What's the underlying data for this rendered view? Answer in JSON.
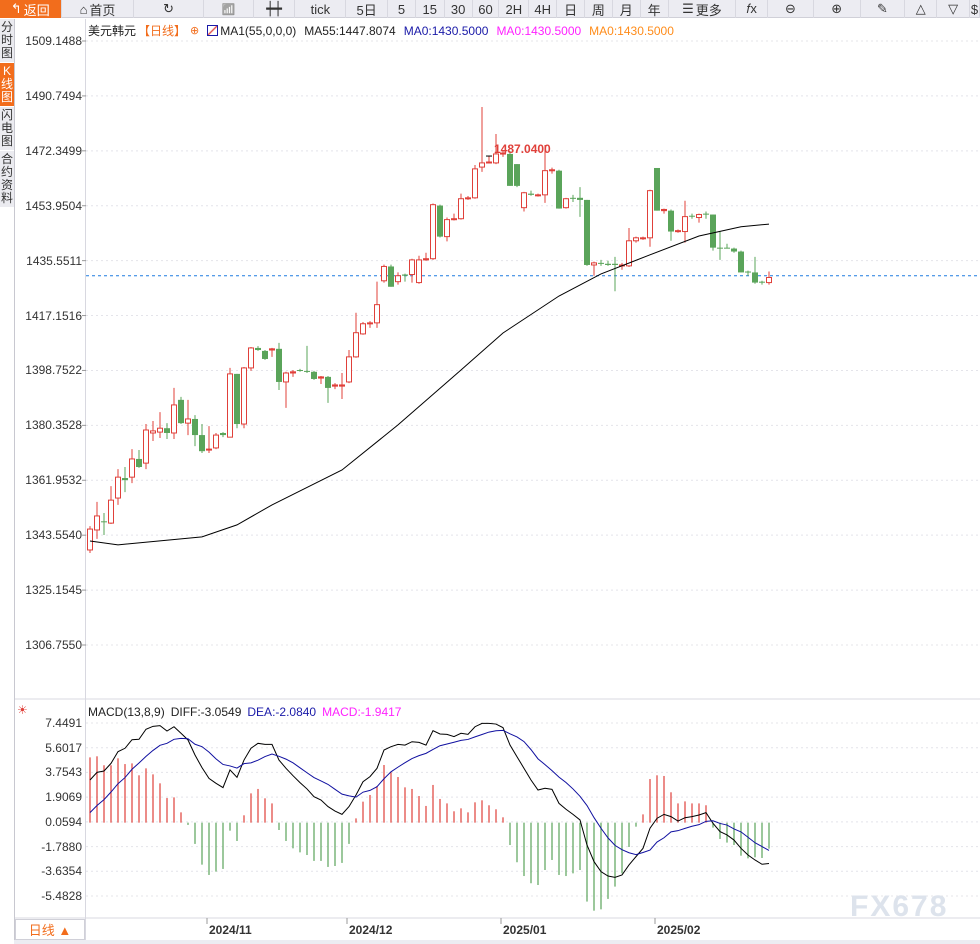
{
  "toolbar": {
    "items": [
      {
        "id": "back",
        "label": "返回",
        "icon": "back-arrow-icon",
        "w": 62
      },
      {
        "id": "home",
        "label": "首页",
        "icon": "home-icon",
        "w": 73
      },
      {
        "id": "refresh",
        "label": "",
        "icon": "refresh-icon",
        "w": 70
      },
      {
        "id": "indicators",
        "label": "",
        "icon": "bar-chart-icon",
        "w": 50
      },
      {
        "id": "candle-style",
        "label": "",
        "icon": "candlestick-icon",
        "w": 42
      },
      {
        "id": "tick",
        "label": "tick",
        "w": 51
      },
      {
        "id": "5d",
        "label": "5日",
        "w": 42
      },
      {
        "id": "5",
        "label": "5",
        "w": 28
      },
      {
        "id": "15",
        "label": "15",
        "w": 29
      },
      {
        "id": "30",
        "label": "30",
        "w": 28
      },
      {
        "id": "60",
        "label": "60",
        "w": 27
      },
      {
        "id": "2h",
        "label": "2H",
        "w": 30
      },
      {
        "id": "4h",
        "label": "4H",
        "w": 28
      },
      {
        "id": "day",
        "label": "日",
        "w": 28
      },
      {
        "id": "week",
        "label": "周",
        "w": 28
      },
      {
        "id": "month",
        "label": "月",
        "w": 28
      },
      {
        "id": "year",
        "label": "年",
        "w": 28
      },
      {
        "id": "more",
        "label": "更多",
        "icon": "menu-icon",
        "w": 68
      },
      {
        "id": "fx",
        "label": "",
        "icon": "function-icon",
        "w": 32
      },
      {
        "id": "zoom-out",
        "label": "",
        "icon": "zoom-out-icon",
        "w": 46
      },
      {
        "id": "zoom-in",
        "label": "",
        "icon": "zoom-in-icon",
        "w": 47
      },
      {
        "id": "draw",
        "label": "",
        "icon": "pencil-icon",
        "w": 45
      },
      {
        "id": "up",
        "label": "",
        "icon": "triangle-up-icon",
        "w": 32
      },
      {
        "id": "down",
        "label": "",
        "icon": "triangle-down-icon",
        "w": 33
      },
      {
        "id": "dollar",
        "label": "$",
        "w": 10
      }
    ]
  },
  "left_tabs": [
    {
      "label": "分时图",
      "active": false
    },
    {
      "label": "K线图",
      "active": true
    },
    {
      "label": "闪电图",
      "active": false
    },
    {
      "label": "合约资料",
      "active": false
    }
  ],
  "legend": {
    "symbol": "美元韩元",
    "period": "【日线】",
    "indicator": "MA1(55,0,0,0)",
    "ma55": "MA55:1447.8074",
    "ma0_a": "MA0:1430.5000",
    "ma0_b": "MA0:1430.5000",
    "ma0_c": "MA0:1430.5000"
  },
  "macd_legend": {
    "name": "MACD(13,8,9)",
    "diff": "DIFF:-3.0549",
    "dea": "DEA:-2.0840",
    "macd": "MACD:-1.9417"
  },
  "period_selector": "日线 ▲",
  "watermark": "FX678",
  "colors": {
    "up": "#e0403a",
    "down": "#5aa45a",
    "ma55": "#000000",
    "diff": "#000000",
    "dea": "#1010a0",
    "dashed": "#1e7be0",
    "accent": "#f26d1c",
    "ma0_a": "#1a1aa8",
    "ma0_b": "#ff22ff",
    "ma0_c": "#ff8c1a"
  },
  "chart_data": [
    {
      "type": "candlestick",
      "title": "美元韩元 日线",
      "y_ticks": [
        "1509.1488",
        "1490.7494",
        "1472.3499",
        "1453.9504",
        "1435.5511",
        "1417.1516",
        "1398.7522",
        "1380.3528",
        "1361.9532",
        "1343.5540",
        "1325.1545",
        "1306.7550"
      ],
      "ylim": [
        1306.755,
        1509.1488
      ],
      "x_ticks": [
        {
          "label": "2024/11",
          "index": 17
        },
        {
          "label": "2024/12",
          "index": 37
        },
        {
          "label": "2025/01",
          "index": 59
        },
        {
          "label": "2025/02",
          "index": 81
        }
      ],
      "max_label": "1487.0400",
      "max_index": 57,
      "last_price_line": 1430.5,
      "candles_ohlc": [
        [
          1338.6,
          1346.6,
          1337.6,
          1345.6
        ],
        [
          1345.3,
          1354.7,
          1342.3,
          1350.0
        ],
        [
          1348.2,
          1351.0,
          1343.6,
          1348.0
        ],
        [
          1347.6,
          1360.0,
          1347.3,
          1355.3
        ],
        [
          1356.0,
          1365.7,
          1353.7,
          1363.0
        ],
        [
          1362.7,
          1366.4,
          1358.0,
          1362.0
        ],
        [
          1363.0,
          1372.4,
          1361.0,
          1369.1
        ],
        [
          1369.1,
          1372.1,
          1366.1,
          1366.4
        ],
        [
          1367.7,
          1380.8,
          1365.7,
          1378.8
        ],
        [
          1377.8,
          1381.8,
          1375.1,
          1378.5
        ],
        [
          1378.1,
          1384.8,
          1376.1,
          1379.4
        ],
        [
          1379.4,
          1381.1,
          1375.8,
          1377.8
        ],
        [
          1377.8,
          1392.9,
          1375.8,
          1387.2
        ],
        [
          1388.9,
          1389.9,
          1380.8,
          1381.1
        ],
        [
          1381.1,
          1388.9,
          1377.1,
          1382.5
        ],
        [
          1382.5,
          1383.8,
          1373.4,
          1377.1
        ],
        [
          1377.1,
          1380.8,
          1371.1,
          1371.7
        ],
        [
          1372.1,
          1380.1,
          1371.1,
          1372.4
        ],
        [
          1372.8,
          1377.8,
          1372.4,
          1377.1
        ],
        [
          1377.8,
          1378.1,
          1376.4,
          1377.1
        ],
        [
          1376.4,
          1399.6,
          1376.4,
          1397.6
        ],
        [
          1397.6,
          1397.6,
          1379.4,
          1380.8
        ],
        [
          1380.8,
          1399.9,
          1379.4,
          1399.6
        ],
        [
          1399.6,
          1406.6,
          1398.6,
          1406.3
        ],
        [
          1406.3,
          1406.9,
          1405.3,
          1405.6
        ],
        [
          1405.3,
          1405.6,
          1402.3,
          1402.6
        ],
        [
          1405.6,
          1406.3,
          1403.3,
          1406.0
        ],
        [
          1406.0,
          1408.0,
          1392.2,
          1394.9
        ],
        [
          1394.9,
          1398.3,
          1386.2,
          1397.9
        ],
        [
          1397.9,
          1398.9,
          1396.6,
          1398.3
        ],
        [
          1398.9,
          1399.3,
          1398.3,
          1398.6
        ],
        [
          1398.6,
          1407.0,
          1397.9,
          1398.3
        ],
        [
          1398.3,
          1398.6,
          1395.6,
          1395.9
        ],
        [
          1396.2,
          1396.9,
          1394.2,
          1396.6
        ],
        [
          1396.6,
          1396.9,
          1387.9,
          1392.9
        ],
        [
          1393.5,
          1394.5,
          1392.5,
          1393.9
        ],
        [
          1393.5,
          1397.9,
          1389.2,
          1393.9
        ],
        [
          1394.9,
          1405.6,
          1394.5,
          1403.3
        ],
        [
          1403.3,
          1418.1,
          1403.0,
          1411.4
        ],
        [
          1411.0,
          1415.0,
          1410.7,
          1414.4
        ],
        [
          1414.4,
          1415.3,
          1413.0,
          1414.7
        ],
        [
          1414.7,
          1428.5,
          1413.0,
          1420.8
        ],
        [
          1428.8,
          1434.2,
          1428.2,
          1433.6
        ],
        [
          1433.6,
          1434.2,
          1426.8,
          1426.8
        ],
        [
          1428.5,
          1431.6,
          1427.5,
          1430.5
        ],
        [
          1430.9,
          1431.2,
          1428.5,
          1430.5
        ],
        [
          1430.9,
          1436.2,
          1428.2,
          1435.8
        ],
        [
          1428.2,
          1437.2,
          1427.8,
          1435.8
        ],
        [
          1435.8,
          1438.2,
          1435.5,
          1436.2
        ],
        [
          1436.2,
          1454.7,
          1435.8,
          1454.3
        ],
        [
          1454.0,
          1454.3,
          1443.3,
          1443.6
        ],
        [
          1443.6,
          1450.0,
          1442.0,
          1449.3
        ],
        [
          1449.3,
          1451.3,
          1449.0,
          1449.6
        ],
        [
          1449.6,
          1458.0,
          1449.3,
          1456.3
        ],
        [
          1456.3,
          1457.2,
          1455.9,
          1456.6
        ],
        [
          1456.6,
          1467.6,
          1456.3,
          1466.3
        ],
        [
          1466.9,
          1487.04,
          1465.3,
          1468.3
        ],
        [
          1468.3,
          1470.6,
          1468.3,
          1468.6
        ],
        [
          1468.3,
          1478.0,
          1467.9,
          1471.3
        ],
        [
          1471.3,
          1472.3,
          1470.3,
          1471.6
        ],
        [
          1471.3,
          1472.3,
          1460.6,
          1460.6
        ],
        [
          1467.9,
          1467.9,
          1460.2,
          1460.6
        ],
        [
          1453.3,
          1458.6,
          1452.0,
          1458.3
        ],
        [
          1458.0,
          1459.0,
          1457.3,
          1457.6
        ],
        [
          1457.3,
          1458.0,
          1457.0,
          1457.6
        ],
        [
          1457.6,
          1474.3,
          1454.9,
          1465.7
        ],
        [
          1465.7,
          1466.7,
          1464.7,
          1466.0
        ],
        [
          1465.7,
          1466.0,
          1453.0,
          1453.0
        ],
        [
          1453.3,
          1456.6,
          1453.0,
          1456.3
        ],
        [
          1456.6,
          1457.6,
          1455.2,
          1456.3
        ],
        [
          1456.6,
          1460.2,
          1450.2,
          1455.9
        ],
        [
          1455.9,
          1455.9,
          1433.8,
          1434.1
        ],
        [
          1434.1,
          1435.2,
          1430.5,
          1434.8
        ],
        [
          1434.8,
          1435.8,
          1433.8,
          1434.5
        ],
        [
          1434.5,
          1435.5,
          1433.8,
          1434.1
        ],
        [
          1434.5,
          1436.8,
          1425.3,
          1434.1
        ],
        [
          1433.8,
          1434.8,
          1432.5,
          1434.1
        ],
        [
          1433.8,
          1446.5,
          1433.4,
          1442.2
        ],
        [
          1442.2,
          1443.6,
          1441.6,
          1443.2
        ],
        [
          1442.9,
          1443.6,
          1442.5,
          1443.2
        ],
        [
          1443.2,
          1459.3,
          1440.2,
          1459.0
        ],
        [
          1466.6,
          1466.6,
          1452.3,
          1452.3
        ],
        [
          1452.3,
          1453.0,
          1451.3,
          1452.7
        ],
        [
          1452.3,
          1452.7,
          1442.2,
          1445.3
        ],
        [
          1445.3,
          1446.0,
          1444.9,
          1445.6
        ],
        [
          1445.3,
          1455.6,
          1441.6,
          1450.3
        ],
        [
          1450.6,
          1451.3,
          1449.6,
          1450.3
        ],
        [
          1450.0,
          1451.3,
          1448.3,
          1451.0
        ],
        [
          1451.3,
          1452.0,
          1449.6,
          1451.0
        ],
        [
          1451.0,
          1451.0,
          1438.9,
          1439.9
        ],
        [
          1439.9,
          1445.3,
          1435.8,
          1439.6
        ],
        [
          1439.9,
          1441.2,
          1439.6,
          1439.6
        ],
        [
          1439.6,
          1439.9,
          1438.2,
          1438.6
        ],
        [
          1438.6,
          1438.9,
          1431.6,
          1431.6
        ],
        [
          1431.9,
          1432.2,
          1430.5,
          1431.6
        ],
        [
          1431.6,
          1436.8,
          1427.8,
          1428.2
        ],
        [
          1428.5,
          1428.8,
          1427.5,
          1428.2
        ],
        [
          1428.2,
          1431.9,
          1427.5,
          1429.9
        ]
      ],
      "ma55": [
        [
          0,
          1341.6
        ],
        [
          4,
          1340.3
        ],
        [
          16,
          1343.0
        ],
        [
          21,
          1347.0
        ],
        [
          26,
          1353.7
        ],
        [
          36,
          1365.4
        ],
        [
          44,
          1380.5
        ],
        [
          53,
          1398.9
        ],
        [
          59,
          1411.3
        ],
        [
          67,
          1423.7
        ],
        [
          73,
          1431.1
        ],
        [
          80,
          1437.5
        ],
        [
          87,
          1443.8
        ],
        [
          93,
          1446.9
        ],
        [
          97,
          1447.8
        ]
      ]
    },
    {
      "type": "macd",
      "y_ticks": [
        "7.4491",
        "5.6017",
        "3.7543",
        "1.9069",
        "0.0594",
        "-1.7880",
        "-3.6354",
        "-5.4828"
      ],
      "ylim": [
        -5.4828,
        7.4491
      ],
      "macd": [
        4.88,
        4.96,
        4.29,
        4.29,
        4.81,
        4.38,
        4.43,
        3.54,
        4.06,
        3.61,
        2.94,
        1.84,
        1.89,
        0.77,
        -0.17,
        -1.59,
        -3.14,
        -3.91,
        -3.66,
        -3.46,
        -0.6,
        -1.37,
        0.55,
        2.19,
        2.52,
        1.82,
        1.44,
        -0.55,
        -1.37,
        -1.92,
        -2.22,
        -2.42,
        -2.86,
        -2.86,
        -3.31,
        -3.24,
        -3.01,
        -1.59,
        0.32,
        1.57,
        2.07,
        2.74,
        4.31,
        3.76,
        3.41,
        2.64,
        2.52,
        1.99,
        1.25,
        2.82,
        1.77,
        1.44,
        0.85,
        1.07,
        0.77,
        1.52,
        1.67,
        1.3,
        1.0,
        0.4,
        -1.67,
        -2.96,
        -3.99,
        -4.53,
        -4.66,
        -3.54,
        -2.79,
        -3.91,
        -3.99,
        -3.79,
        -3.54,
        -5.9,
        -6.58,
        -6.48,
        -5.7,
        -4.78,
        -3.79,
        -1.82,
        -0.3,
        0.62,
        3.26,
        3.54,
        3.49,
        2.27,
        1.44,
        1.59,
        1.44,
        1.44,
        1.3,
        -0.37,
        -1.22,
        -1.49,
        -1.67,
        -2.47,
        -2.67,
        -2.59,
        -2.64,
        -1.94
      ],
      "diff": [
        3.19,
        3.76,
        3.86,
        4.43,
        5.31,
        5.56,
        6.2,
        6.23,
        6.98,
        7.2,
        7.25,
        6.85,
        7.17,
        6.68,
        6.18,
        5.06,
        4.11,
        3.31,
        2.94,
        2.62,
        3.94,
        3.39,
        4.68,
        5.56,
        5.93,
        5.85,
        5.85,
        4.68,
        4.06,
        3.51,
        2.99,
        2.52,
        1.94,
        1.69,
        1.2,
        0.87,
        0.62,
        1.2,
        2.07,
        3.06,
        3.44,
        4.06,
        5.43,
        5.68,
        5.85,
        5.8,
        6.05,
        6.0,
        5.8,
        6.88,
        6.63,
        6.6,
        6.43,
        6.68,
        6.6,
        7.17,
        7.42,
        7.42,
        7.37,
        7.1,
        5.8,
        4.93,
        4.06,
        3.19,
        2.44,
        2.57,
        2.49,
        1.44,
        1.0,
        0.62,
        0.2,
        -1.67,
        -2.91,
        -3.66,
        -3.99,
        -4.09,
        -3.91,
        -3.16,
        -2.54,
        -1.92,
        -0.42,
        0.32,
        0.62,
        0.45,
        0.12,
        0.37,
        0.45,
        0.57,
        0.75,
        -0.05,
        -0.67,
        -0.92,
        -1.3,
        -1.92,
        -2.42,
        -2.79,
        -3.11,
        -3.05
      ],
      "dea": [
        0.75,
        1.28,
        1.72,
        2.29,
        2.91,
        3.37,
        3.99,
        4.46,
        4.95,
        5.4,
        5.78,
        5.93,
        6.23,
        6.3,
        6.27,
        5.86,
        5.68,
        5.27,
        4.77,
        4.35,
        4.24,
        4.08,
        4.41,
        4.47,
        4.67,
        4.94,
        5.13,
        4.96,
        4.75,
        4.47,
        4.1,
        3.73,
        3.37,
        3.12,
        2.86,
        2.49,
        2.13,
        2.0,
        1.91,
        2.28,
        2.41,
        2.69,
        3.28,
        3.8,
        4.15,
        4.48,
        4.79,
        5.01,
        5.18,
        5.47,
        5.75,
        5.88,
        6.01,
        6.15,
        6.22,
        6.41,
        6.59,
        6.77,
        6.87,
        6.9,
        6.64,
        6.41,
        6.06,
        5.46,
        4.77,
        4.34,
        3.89,
        3.4,
        3.0,
        2.52,
        1.97,
        1.28,
        0.38,
        -0.42,
        -1.14,
        -1.7,
        -2.02,
        -2.25,
        -2.39,
        -2.23,
        -2.05,
        -1.45,
        -1.13,
        -0.69,
        -0.6,
        -0.43,
        -0.27,
        -0.15,
        0.1,
        0.14,
        -0.06,
        -0.18,
        -0.47,
        -0.69,
        -1.09,
        -1.5,
        -1.79,
        -2.08
      ]
    }
  ]
}
